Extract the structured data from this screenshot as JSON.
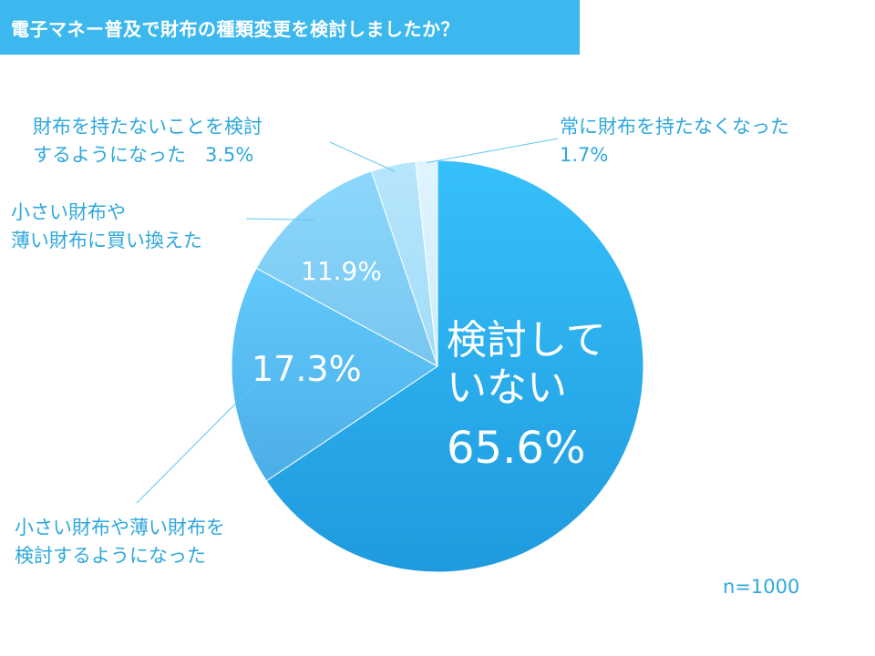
{
  "title": "電子マネー普及で財布の種類変更を検討しましたか？",
  "n_label": "n=1000",
  "colors": {
    "accent": "#3cb8ee",
    "label_text": "#2ea8dc",
    "leader_line": "#5cc6f2"
  },
  "chart_data": {
    "type": "pie",
    "slices": [
      {
        "name_lines": [
          "検討して",
          "いない"
        ],
        "value": 65.6,
        "label": "65.6%",
        "color_from": "#36c0fa",
        "color_to": "#1f9ade"
      },
      {
        "name_lines": [
          "小さい財布や薄い財布を",
          "検討するようになった"
        ],
        "value": 17.3,
        "label": "17.3%",
        "color_from": "#62cafc",
        "color_to": "#4baee6"
      },
      {
        "name_lines": [
          "小さい財布や",
          "薄い財布に買い換えた"
        ],
        "value": 11.9,
        "label": "11.9%",
        "color_from": "#8cd8fc",
        "color_to": "#78c6f0"
      },
      {
        "name_lines": [
          "財布を持たないことを検討",
          "するようになった　3.5%"
        ],
        "value": 3.5,
        "label": "3.5%",
        "color_from": "#b6e6fc",
        "color_to": "#a2dcf8"
      },
      {
        "name_lines": [
          "常に財布を持たなくなった",
          "1.7%"
        ],
        "value": 1.7,
        "label": "1.7%",
        "color_from": "#dff4fe",
        "color_to": "#cdeefc"
      }
    ]
  }
}
